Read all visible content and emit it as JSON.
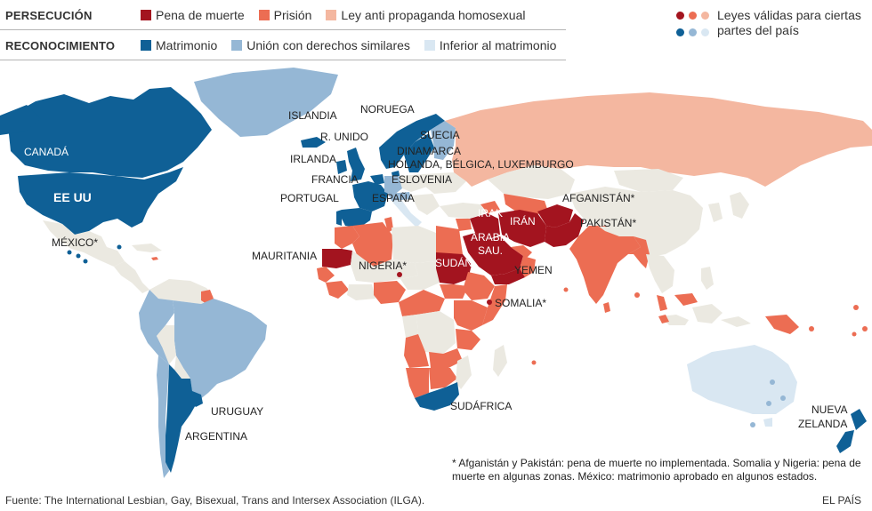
{
  "legend": {
    "persecution": {
      "title": "PERSECUCIÓN",
      "items": [
        {
          "label": "Pena de muerte",
          "color": "#a3141f"
        },
        {
          "label": "Prisión",
          "color": "#ec6d53"
        },
        {
          "label": "Ley anti propaganda homosexual",
          "color": "#f4b7a0"
        }
      ]
    },
    "recognition": {
      "title": "RECONOCIMIENTO",
      "items": [
        {
          "label": "Matrimonio",
          "color": "#0f6096"
        },
        {
          "label": "Unión con derechos similares",
          "color": "#95b7d5"
        },
        {
          "label": "Inferior al matrimonio",
          "color": "#d9e7f2"
        }
      ]
    },
    "partial": {
      "text": "Leyes válidas para ciertas partes del país",
      "dot_colors": [
        "#a3141f",
        "#ec6d53",
        "#f4b7a0",
        "#0f6096",
        "#95b7d5",
        "#d9e7f2"
      ]
    }
  },
  "colors": {
    "none": "#ebe9e1",
    "death": "#a3141f",
    "prison": "#ec6d53",
    "propaganda": "#f4b7a0",
    "marriage": "#0f6096",
    "union": "#95b7d5",
    "inferior": "#d9e7f2"
  },
  "labels": {
    "canada": "CANADÁ",
    "eeuu": "EE UU",
    "mexico": "MÉXICO*",
    "islandia": "ISLANDIA",
    "noruega": "NORUEGA",
    "r_unido": "R. UNIDO",
    "suecia": "SUECIA",
    "irlanda": "IRLANDA",
    "dinamarca": "DINAMARCA",
    "benelux": "HOLANDA, BÉLGICA, LUXEMBURGO",
    "francia": "FRANCIA",
    "eslovenia": "ESLOVENIA",
    "portugal": "PORTUGAL",
    "espana": "ESPAÑA",
    "afganistan": "AFGANISTÁN*",
    "irak": "IRAK",
    "iran": "IRÁN",
    "pakistan": "PAKISTÁN*",
    "arabia1": "ARABIA",
    "arabia2": "SAU.",
    "mauritania": "MAURITANIA",
    "nigeria": "NIGERIA*",
    "sudan": "SUDÁN",
    "yemen": "YEMEN",
    "somalia": "SOMALIA*",
    "sudafrica": "SUDÁFRICA",
    "uruguay": "URUGUAY",
    "argentina": "ARGENTINA",
    "nueva1": "NUEVA",
    "nueva2": "ZELANDA"
  },
  "footnote": "* Afganistán y Pakistán: pena de muerte no implementada. Somalia y Nigeria: pena de muerte en algunas zonas. México: matrimonio aprobado en algunos estados.",
  "source": "Fuente: The International Lesbian, Gay, Bisexual, Trans and Intersex Association (ILGA).",
  "brand": "EL PAÍS"
}
